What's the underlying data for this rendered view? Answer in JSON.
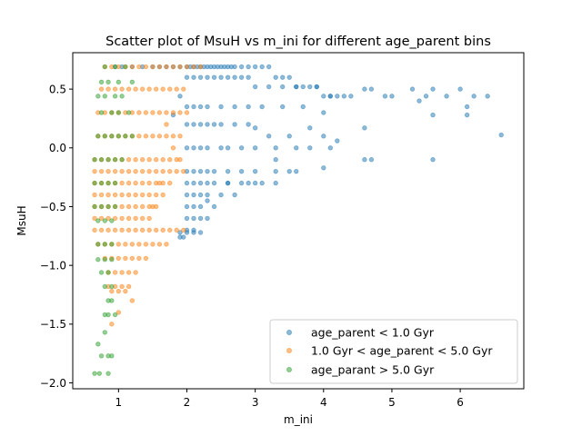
{
  "chart_data": {
    "type": "scatter",
    "title": "Scatter plot of MsuH vs m_ini for different age_parent bins",
    "xlabel": "m_ini",
    "ylabel": "MsuH",
    "xlim": [
      0.33,
      6.93
    ],
    "ylim": [
      -2.05,
      0.81
    ],
    "xticks": [
      1,
      2,
      3,
      4,
      5,
      6
    ],
    "yticks": [
      -2.0,
      -1.5,
      -1.0,
      -0.5,
      0.0,
      0.5
    ],
    "xtick_labels": [
      "1",
      "2",
      "3",
      "4",
      "5",
      "6"
    ],
    "ytick_labels": [
      "−2.0",
      "−1.5",
      "−1.0",
      "−0.5",
      "0.0",
      "0.5"
    ],
    "grid": false,
    "legend_position": "lower-right",
    "series": [
      {
        "name": "age_parent < 1.0 Gyr",
        "color": "#1f77b4",
        "x": [
          0.95,
          1.05,
          1.2,
          1.35,
          1.5,
          1.6,
          1.7,
          1.8,
          1.9,
          2.0,
          2.05,
          2.1,
          2.15,
          2.2,
          2.25,
          2.3,
          2.35,
          2.4,
          2.45,
          2.5,
          2.55,
          2.6,
          2.65,
          2.7,
          2.8,
          2.9,
          3.0,
          3.1,
          3.2,
          3.3,
          3.4,
          3.5,
          3.6,
          3.7,
          3.8,
          3.9,
          4.0,
          4.1,
          4.2,
          4.3,
          4.4,
          4.6,
          4.7,
          4.9,
          5.0,
          5.3,
          5.4,
          5.5,
          5.6,
          5.8,
          6.0,
          6.1,
          6.2,
          6.4,
          6.6,
          2.0,
          2.1,
          2.2,
          2.3,
          2.4,
          2.5,
          2.6,
          2.7,
          2.8,
          2.9,
          3.0,
          3.2,
          3.4,
          3.6,
          3.9,
          4.1,
          2.0,
          2.1,
          2.2,
          2.3,
          2.5,
          2.7,
          2.9,
          3.1,
          3.4,
          3.7,
          4.0,
          4.6,
          5.6,
          6.1,
          2.0,
          2.1,
          2.2,
          2.3,
          2.4,
          2.5,
          2.7,
          2.9,
          3.0,
          3.2,
          3.5,
          3.8,
          4.0,
          4.2,
          2.0,
          2.1,
          2.2,
          2.3,
          2.5,
          2.6,
          2.8,
          3.0,
          3.3,
          3.6,
          3.8,
          4.1,
          4.7,
          5.6,
          2.0,
          2.1,
          2.2,
          2.3,
          2.4,
          2.6,
          2.8,
          3.0,
          3.3,
          3.5,
          4.0,
          4.6,
          2.0,
          2.1,
          2.2,
          2.3,
          2.4,
          2.6,
          2.9,
          3.1,
          3.3,
          2.0,
          2.1,
          2.2,
          2.3,
          2.5,
          2.7,
          2.0,
          2.1,
          2.2,
          2.4,
          2.0,
          2.1,
          2.2,
          2.3,
          2.0,
          2.1,
          1.9,
          2.0,
          1.9,
          2.1,
          2.2
        ],
        "y": [
          0.69,
          0.69,
          0.69,
          0.69,
          0.69,
          0.69,
          0.69,
          0.69,
          0.69,
          0.69,
          0.69,
          0.69,
          0.69,
          0.69,
          0.69,
          0.69,
          0.69,
          0.69,
          0.69,
          0.69,
          0.69,
          0.69,
          0.69,
          0.69,
          0.69,
          0.69,
          0.69,
          0.69,
          0.69,
          0.6,
          0.6,
          0.6,
          0.52,
          0.52,
          0.52,
          0.52,
          0.44,
          0.44,
          0.44,
          0.44,
          0.44,
          0.5,
          0.5,
          0.44,
          0.44,
          0.5,
          0.4,
          0.44,
          0.5,
          0.44,
          0.5,
          0.35,
          0.44,
          0.44,
          0.11,
          0.6,
          0.6,
          0.6,
          0.6,
          0.6,
          0.6,
          0.6,
          0.6,
          0.6,
          0.6,
          0.52,
          0.52,
          0.52,
          0.52,
          0.52,
          0.44,
          0.35,
          0.35,
          0.35,
          0.35,
          0.35,
          0.35,
          0.35,
          0.35,
          0.35,
          0.35,
          0.3,
          0.17,
          0.28,
          0.28,
          0.2,
          0.2,
          0.2,
          0.2,
          0.2,
          0.2,
          0.2,
          0.2,
          0.17,
          0.1,
          0.1,
          0.17,
          0.1,
          0.06,
          0.0,
          0.0,
          0.0,
          0.0,
          0.0,
          0.0,
          0.0,
          0.0,
          0.0,
          0.0,
          0.0,
          0.0,
          -0.1,
          -0.1,
          -0.2,
          -0.2,
          -0.2,
          -0.2,
          -0.2,
          -0.2,
          -0.2,
          -0.2,
          -0.2,
          -0.2,
          -0.17,
          -0.1,
          -0.3,
          -0.3,
          -0.3,
          -0.3,
          -0.3,
          -0.3,
          -0.3,
          -0.3,
          -0.3,
          -0.4,
          -0.4,
          -0.4,
          -0.4,
          -0.4,
          -0.4,
          -0.5,
          -0.5,
          -0.5,
          -0.5,
          -0.6,
          -0.6,
          -0.6,
          -0.6,
          -0.7,
          -0.7,
          -0.72,
          -0.72,
          -0.76,
          -0.72,
          -0.72
        ]
      },
      {
        "name": "1.0 Gyr < age_parent < 5.0 Gyr",
        "color": "#ff7f0e",
        "x": [
          0.8,
          0.9,
          1.0,
          1.1,
          1.2,
          1.3,
          1.4,
          1.5,
          1.6,
          1.7,
          1.8,
          1.9,
          2.0,
          2.1,
          2.2,
          0.75,
          0.85,
          0.95,
          1.05,
          1.15,
          1.25,
          1.35,
          1.45,
          1.55,
          1.65,
          1.75,
          1.85,
          1.95,
          0.7,
          0.8,
          0.9,
          1.0,
          1.1,
          1.2,
          1.3,
          1.4,
          1.5,
          1.6,
          1.7,
          1.8,
          1.9,
          2.0,
          0.7,
          0.8,
          0.9,
          1.0,
          1.1,
          1.2,
          1.3,
          1.4,
          1.5,
          1.6,
          1.7,
          1.8,
          1.9,
          0.65,
          0.75,
          0.85,
          0.95,
          1.05,
          1.15,
          1.25,
          1.35,
          1.45,
          1.55,
          1.65,
          1.75,
          1.85,
          0.65,
          0.75,
          0.85,
          0.95,
          1.05,
          1.15,
          1.25,
          1.35,
          1.45,
          1.55,
          1.65,
          1.75,
          1.85,
          1.95,
          0.65,
          0.75,
          0.85,
          0.95,
          1.05,
          1.15,
          1.25,
          1.35,
          1.45,
          1.55,
          1.65,
          1.75,
          0.65,
          0.75,
          0.85,
          0.95,
          1.05,
          1.15,
          1.25,
          1.35,
          1.45,
          1.55,
          1.65,
          0.65,
          0.75,
          0.85,
          0.95,
          1.05,
          1.15,
          1.25,
          1.35,
          1.45,
          1.55,
          0.65,
          0.75,
          0.85,
          0.95,
          1.05,
          1.15,
          1.25,
          1.35,
          1.45,
          0.65,
          0.75,
          0.85,
          0.95,
          1.05,
          1.15,
          1.25,
          1.35,
          1.45,
          1.55,
          1.65,
          1.75,
          1.85,
          1.95,
          0.7,
          0.8,
          0.9,
          1.0,
          1.1,
          1.2,
          1.3,
          1.4,
          1.5,
          1.6,
          1.7,
          0.8,
          0.9,
          1.0,
          1.1,
          1.2,
          1.3,
          1.4,
          0.85,
          0.95,
          1.05,
          1.15,
          1.25,
          0.85,
          0.95,
          1.05,
          1.15,
          0.9,
          1.0,
          1.1
        ],
        "y": [
          0.69,
          0.69,
          0.69,
          0.69,
          0.69,
          0.69,
          0.69,
          0.69,
          0.69,
          0.69,
          0.69,
          0.69,
          0.69,
          0.69,
          0.69,
          0.5,
          0.5,
          0.5,
          0.5,
          0.5,
          0.5,
          0.5,
          0.5,
          0.5,
          0.5,
          0.5,
          0.5,
          0.5,
          0.3,
          0.3,
          0.3,
          0.3,
          0.3,
          0.3,
          0.3,
          0.3,
          0.3,
          0.3,
          0.3,
          0.3,
          0.3,
          0.3,
          0.1,
          0.1,
          0.1,
          0.1,
          0.1,
          0.1,
          0.1,
          0.1,
          0.1,
          0.1,
          0.1,
          0.1,
          0.1,
          -0.1,
          -0.1,
          -0.1,
          -0.1,
          -0.1,
          -0.1,
          -0.1,
          -0.1,
          -0.1,
          -0.1,
          -0.1,
          -0.1,
          -0.1,
          -0.2,
          -0.2,
          -0.2,
          -0.2,
          -0.2,
          -0.2,
          -0.2,
          -0.2,
          -0.2,
          -0.2,
          -0.2,
          -0.2,
          -0.2,
          -0.2,
          -0.3,
          -0.3,
          -0.3,
          -0.3,
          -0.3,
          -0.3,
          -0.3,
          -0.3,
          -0.3,
          -0.3,
          -0.3,
          -0.3,
          -0.4,
          -0.4,
          -0.4,
          -0.4,
          -0.4,
          -0.4,
          -0.4,
          -0.4,
          -0.4,
          -0.4,
          -0.4,
          -0.5,
          -0.5,
          -0.5,
          -0.5,
          -0.5,
          -0.5,
          -0.5,
          -0.5,
          -0.5,
          -0.5,
          -0.6,
          -0.6,
          -0.6,
          -0.6,
          -0.6,
          -0.6,
          -0.6,
          -0.6,
          -0.6,
          -0.7,
          -0.7,
          -0.7,
          -0.7,
          -0.7,
          -0.7,
          -0.7,
          -0.7,
          -0.7,
          -0.7,
          -0.7,
          -0.7,
          -0.7,
          -0.7,
          -0.82,
          -0.82,
          -0.82,
          -0.82,
          -0.82,
          -0.82,
          -0.82,
          -0.82,
          -0.82,
          -0.82,
          -0.82,
          -0.94,
          -0.94,
          -0.94,
          -0.94,
          -0.94,
          -0.94,
          -0.94,
          -1.06,
          -1.06,
          -1.06,
          -1.06,
          -1.06,
          -1.18,
          -1.18,
          -1.18,
          -1.18,
          -1.22,
          -1.22,
          -1.22
        ]
      },
      {
        "name": "age_parant > 5.0 Gyr",
        "color": "#2ca02c",
        "x": [
          0.8,
          0.95,
          1.1,
          0.75,
          0.85,
          1.0,
          1.2,
          0.7,
          0.8,
          0.95,
          1.05,
          0.75,
          0.9,
          1.0,
          1.15,
          0.7,
          0.8,
          0.9,
          1.0,
          1.1,
          1.2,
          0.65,
          0.75,
          0.85,
          0.95,
          1.05,
          0.65,
          0.75,
          0.85,
          0.95,
          0.65,
          0.75,
          0.85,
          0.95,
          0.7,
          0.8,
          0.9,
          0.7,
          0.8,
          0.9,
          0.7,
          0.8,
          0.9,
          0.75,
          0.85,
          0.8,
          0.9,
          0.85,
          0.9,
          0.8,
          0.85,
          0.95,
          0.7,
          0.75,
          0.85
        ],
        "y": [
          0.69,
          0.69,
          0.69,
          0.56,
          0.56,
          0.56,
          0.56,
          0.44,
          0.44,
          0.44,
          0.44,
          0.3,
          0.3,
          0.3,
          0.3,
          0.1,
          0.1,
          0.1,
          0.1,
          0.1,
          0.1,
          -0.1,
          -0.1,
          -0.1,
          -0.1,
          -0.1,
          -0.3,
          -0.3,
          -0.3,
          -0.3,
          -0.5,
          -0.5,
          -0.5,
          -0.5,
          -0.62,
          -0.62,
          -0.62,
          -0.82,
          -0.82,
          -0.82,
          -0.95,
          -0.95,
          -0.95,
          -1.06,
          -1.06,
          -1.18,
          -1.18,
          -1.3,
          -1.3,
          -1.42,
          -1.42,
          -1.42,
          -1.67,
          -1.77,
          -1.77
        ]
      }
    ],
    "extra_points": {
      "series_0": [
        [
          2.6,
          -0.3
        ],
        [
          2.8,
          -0.3
        ],
        [
          3.0,
          -0.3
        ],
        [
          3.3,
          -0.1
        ],
        [
          3.6,
          -0.2
        ],
        [
          2.3,
          -0.45
        ],
        [
          1.95,
          -0.76
        ],
        [
          1.9,
          0.44
        ],
        [
          1.8,
          0.28
        ]
      ],
      "series_1": [
        [
          1.7,
          0.2
        ],
        [
          1.8,
          0.0
        ],
        [
          1.9,
          -0.1
        ],
        [
          1.6,
          -0.3
        ],
        [
          1.5,
          -0.5
        ],
        [
          1.2,
          -1.3
        ],
        [
          1.0,
          -1.4
        ],
        [
          0.9,
          -1.5
        ]
      ],
      "series_2": [
        [
          0.65,
          -1.92
        ],
        [
          0.72,
          -1.92
        ],
        [
          0.85,
          -1.92
        ],
        [
          0.9,
          -1.77
        ],
        [
          0.8,
          -1.57
        ]
      ]
    }
  }
}
